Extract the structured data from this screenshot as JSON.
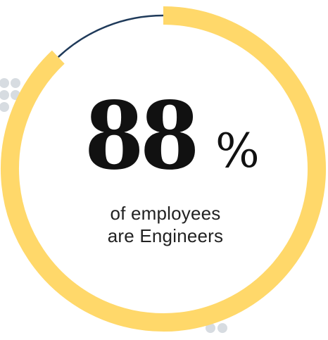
{
  "stat": {
    "value": "88",
    "unit": "%",
    "caption_line1": "of employees",
    "caption_line2": "are Engineers"
  },
  "chart_data": {
    "type": "pie",
    "style": "donut-ring",
    "values": [
      88,
      12
    ],
    "colors": [
      "#FFD86A",
      "#1F3A5A"
    ]
  },
  "colors": {
    "accent": "#FFD86A",
    "track": "#1F3A5A",
    "dots": "#D7DCE1",
    "text": "#111111"
  }
}
